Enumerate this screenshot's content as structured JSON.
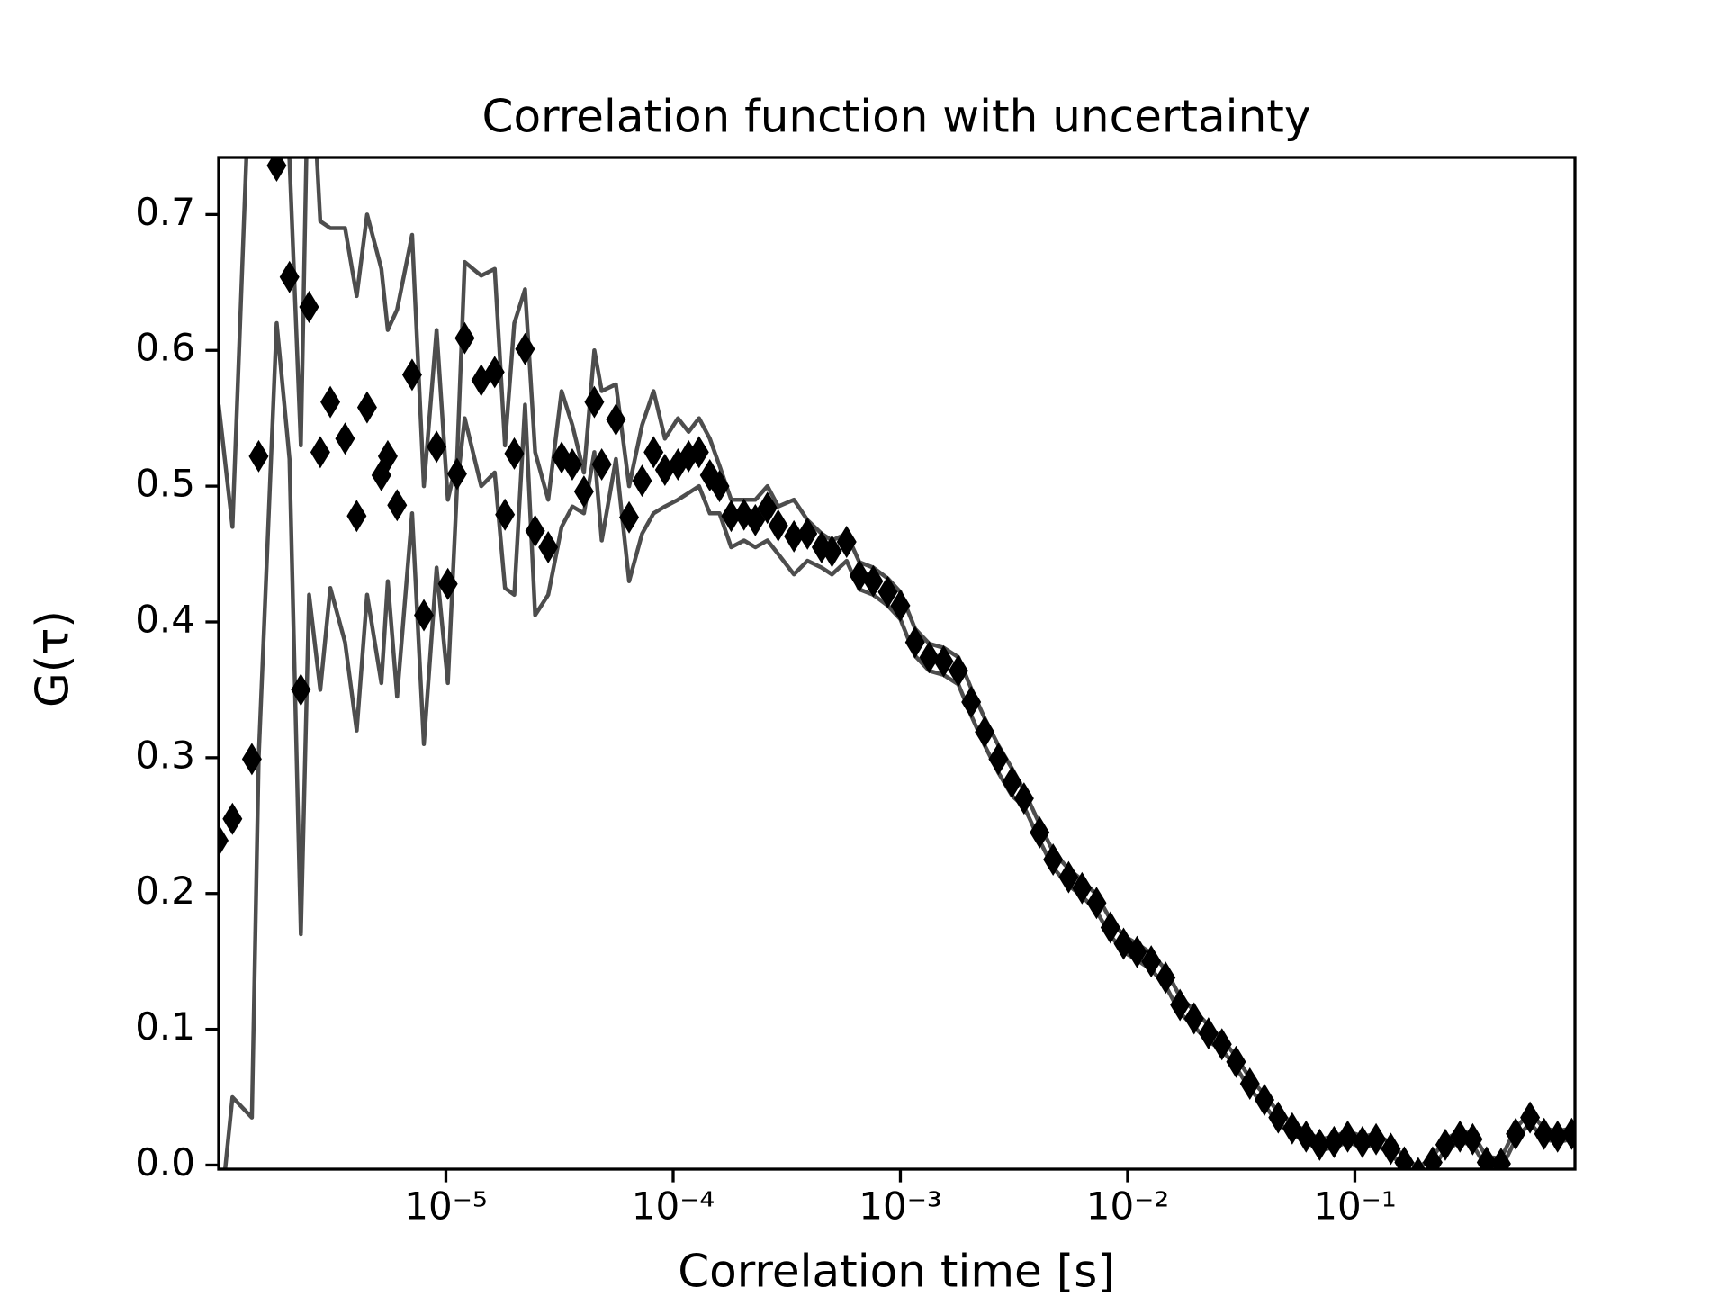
{
  "chart_data": {
    "type": "scatter",
    "title": "Correlation function with uncertainty",
    "xlabel": "Correlation time [s]",
    "ylabel": "G(τ)",
    "xscale": "log",
    "xlim": [
      1e-06,
      0.93
    ],
    "ylim": [
      -0.003,
      0.742
    ],
    "xticks": [
      {
        "value": 1e-05,
        "label": "10⁻⁵"
      },
      {
        "value": 0.0001,
        "label": "10⁻⁴"
      },
      {
        "value": 0.001,
        "label": "10⁻³"
      },
      {
        "value": 0.01,
        "label": "10⁻²"
      },
      {
        "value": 0.1,
        "label": "10⁻¹"
      }
    ],
    "yticks": [
      {
        "value": 0,
        "label": "0.0"
      },
      0.1,
      0.2,
      0.3,
      0.4,
      0.5,
      0.6,
      0.7
    ],
    "marker_color": "#000000",
    "line_color": "#4d4d4d",
    "x": [
      1e-06,
      1.15e-06,
      1.4e-06,
      1.5e-06,
      1.8e-06,
      2.05e-06,
      2.3e-06,
      2.5e-06,
      2.8e-06,
      3.1e-06,
      3.6e-06,
      4.05e-06,
      4.5e-06,
      5.2e-06,
      5.55e-06,
      6.1e-06,
      7.1e-06,
      8e-06,
      9.1e-06,
      1.02e-05,
      1.12e-05,
      1.21e-05,
      1.43e-05,
      1.64e-05,
      1.82e-05,
      2e-05,
      2.23e-05,
      2.47e-05,
      2.82e-05,
      3.23e-05,
      3.6e-05,
      4.05e-05,
      4.5e-05,
      4.85e-05,
      5.6e-05,
      6.4e-05,
      7.3e-05,
      8.2e-05,
      9.2e-05,
      0.000105,
      0.000117,
      0.00013,
      0.000145,
      0.00016,
      0.00018,
      0.000205,
      0.00023,
      0.00026,
      0.00029,
      0.00034,
      0.00039,
      0.00045,
      0.0005,
      0.00058,
      0.00066,
      0.00076,
      0.00088,
      0.001,
      0.00116,
      0.00134,
      0.00155,
      0.0018,
      0.00205,
      0.00235,
      0.0027,
      0.0031,
      0.0035,
      0.0041,
      0.0047,
      0.0055,
      0.0063,
      0.0073,
      0.0084,
      0.0096,
      0.011,
      0.0127,
      0.0147,
      0.017,
      0.0196,
      0.0227,
      0.026,
      0.03,
      0.0345,
      0.04,
      0.046,
      0.053,
      0.061,
      0.07,
      0.081,
      0.093,
      0.108,
      0.124,
      0.144,
      0.165,
      0.19,
      0.22,
      0.25,
      0.29,
      0.33,
      0.38,
      0.44,
      0.51,
      0.59,
      0.68,
      0.78,
      0.9
    ],
    "values": [
      0.239,
      0.255,
      0.299,
      0.522,
      0.736,
      0.654,
      0.35,
      0.632,
      0.525,
      0.562,
      0.535,
      0.478,
      0.558,
      0.508,
      0.522,
      0.486,
      0.582,
      0.405,
      0.529,
      0.428,
      0.509,
      0.609,
      0.578,
      0.584,
      0.479,
      0.524,
      0.601,
      0.467,
      0.455,
      0.521,
      0.516,
      0.496,
      0.562,
      0.516,
      0.549,
      0.477,
      0.504,
      0.525,
      0.512,
      0.516,
      0.522,
      0.525,
      0.508,
      0.5,
      0.478,
      0.479,
      0.475,
      0.484,
      0.471,
      0.463,
      0.465,
      0.455,
      0.452,
      0.459,
      0.434,
      0.43,
      0.422,
      0.412,
      0.385,
      0.374,
      0.371,
      0.364,
      0.341,
      0.319,
      0.299,
      0.282,
      0.27,
      0.245,
      0.225,
      0.212,
      0.204,
      0.193,
      0.175,
      0.163,
      0.157,
      0.15,
      0.138,
      0.118,
      0.108,
      0.097,
      0.089,
      0.076,
      0.06,
      0.048,
      0.035,
      0.027,
      0.021,
      0.015,
      0.017,
      0.021,
      0.017,
      0.019,
      0.012,
      0.002,
      -0.006,
      0.002,
      0.015,
      0.021,
      0.019,
      0.002,
      0.001,
      0.023,
      0.035,
      0.023,
      0.021,
      0.023
    ],
    "upper": [
      0.56,
      0.47,
      0.85,
      0.9,
      0.85,
      0.74,
      0.53,
      0.85,
      0.695,
      0.69,
      0.69,
      0.64,
      0.7,
      0.66,
      0.615,
      0.63,
      0.685,
      0.5,
      0.615,
      0.49,
      0.52,
      0.665,
      0.655,
      0.66,
      0.53,
      0.62,
      0.645,
      0.525,
      0.49,
      0.57,
      0.545,
      0.51,
      0.6,
      0.57,
      0.575,
      0.5,
      0.545,
      0.57,
      0.535,
      0.55,
      0.54,
      0.55,
      0.535,
      0.515,
      0.49,
      0.49,
      0.49,
      0.5,
      0.485,
      0.49,
      0.475,
      0.465,
      0.46,
      0.465,
      0.444,
      0.44,
      0.432,
      0.422,
      0.395,
      0.384,
      0.381,
      0.374,
      0.351,
      0.329,
      0.309,
      0.292,
      0.276,
      0.251,
      0.231,
      0.218,
      0.21,
      0.199,
      0.181,
      0.169,
      0.163,
      0.156,
      0.144,
      0.124,
      0.114,
      0.103,
      0.093,
      0.08,
      0.064,
      0.052,
      0.039,
      0.031,
      0.025,
      0.019,
      0.021,
      0.025,
      0.021,
      0.023,
      0.016,
      0.006,
      -0.002,
      0.006,
      0.019,
      0.025,
      0.023,
      0.006,
      0.005,
      0.027,
      0.039,
      0.027,
      0.025,
      0.027
    ],
    "lower": [
      -0.05,
      0.05,
      0.035,
      0.3,
      0.62,
      0.52,
      0.17,
      0.42,
      0.35,
      0.425,
      0.385,
      0.32,
      0.42,
      0.355,
      0.43,
      0.345,
      0.48,
      0.31,
      0.44,
      0.355,
      0.5,
      0.55,
      0.5,
      0.51,
      0.425,
      0.42,
      0.56,
      0.405,
      0.42,
      0.47,
      0.485,
      0.48,
      0.525,
      0.46,
      0.52,
      0.43,
      0.465,
      0.48,
      0.485,
      0.49,
      0.495,
      0.5,
      0.48,
      0.48,
      0.455,
      0.46,
      0.455,
      0.46,
      0.45,
      0.435,
      0.445,
      0.44,
      0.435,
      0.445,
      0.424,
      0.42,
      0.412,
      0.402,
      0.375,
      0.364,
      0.361,
      0.354,
      0.331,
      0.309,
      0.289,
      0.272,
      0.264,
      0.239,
      0.219,
      0.206,
      0.198,
      0.187,
      0.169,
      0.157,
      0.151,
      0.144,
      0.132,
      0.112,
      0.102,
      0.091,
      0.085,
      0.072,
      0.056,
      0.044,
      0.031,
      0.023,
      0.017,
      0.011,
      0.013,
      0.017,
      0.013,
      0.015,
      0.008,
      -0.002,
      -0.01,
      -0.002,
      0.011,
      0.017,
      0.015,
      -0.002,
      -0.003,
      0.019,
      0.031,
      0.019,
      0.017,
      0.019
    ]
  }
}
